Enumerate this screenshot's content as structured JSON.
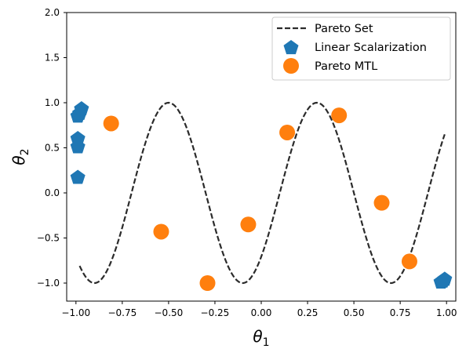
{
  "chart_data": {
    "type": "scatter",
    "title": "",
    "xlabel_symbol": "θ",
    "xlabel_subscript": "1",
    "ylabel_symbol": "θ",
    "ylabel_subscript": "2",
    "xlim": [
      -1.05,
      1.05
    ],
    "ylim": [
      -1.2,
      2.0
    ],
    "x_ticks": [
      -1.0,
      -0.75,
      -0.5,
      -0.25,
      0.0,
      0.25,
      0.5,
      0.75,
      1.0
    ],
    "x_tick_labels": [
      "−1.00",
      "−0.75",
      "−0.50",
      "−0.25",
      "0.00",
      "0.25",
      "0.50",
      "0.75",
      "1.00"
    ],
    "y_ticks": [
      -1.0,
      -0.5,
      0.0,
      0.5,
      1.0,
      1.5,
      2.0
    ],
    "y_tick_labels": [
      "−1.0",
      "−0.5",
      "0.0",
      "0.5",
      "1.0",
      "1.5",
      "2.0"
    ],
    "grid": false,
    "legend_position": "top-right",
    "series": [
      {
        "name": "Pareto Set",
        "kind": "dashed-line",
        "color": "#2b2b2b",
        "function": "sin(2.5*pi*(x - 0.1))",
        "x_range": [
          -0.98,
          0.99
        ]
      },
      {
        "name": "Linear Scalarization",
        "kind": "pentagon-marker",
        "color": "#1f77b4",
        "points": [
          {
            "x": -0.99,
            "y": 0.17
          },
          {
            "x": -0.99,
            "y": 0.51
          },
          {
            "x": -0.99,
            "y": 0.6
          },
          {
            "x": -0.99,
            "y": 0.85
          },
          {
            "x": -0.98,
            "y": 0.88
          },
          {
            "x": -0.97,
            "y": 0.93
          },
          {
            "x": 0.97,
            "y": -0.99
          },
          {
            "x": 0.98,
            "y": -0.98
          },
          {
            "x": 0.99,
            "y": -0.96
          }
        ]
      },
      {
        "name": "Pareto MTL",
        "kind": "circle-marker",
        "color": "#ff7f0e",
        "points": [
          {
            "x": -0.81,
            "y": 0.77
          },
          {
            "x": -0.54,
            "y": -0.43
          },
          {
            "x": -0.29,
            "y": -1.0
          },
          {
            "x": -0.07,
            "y": -0.35
          },
          {
            "x": 0.14,
            "y": 0.67
          },
          {
            "x": 0.42,
            "y": 0.86
          },
          {
            "x": 0.65,
            "y": -0.11
          },
          {
            "x": 0.8,
            "y": -0.76
          }
        ]
      }
    ]
  }
}
